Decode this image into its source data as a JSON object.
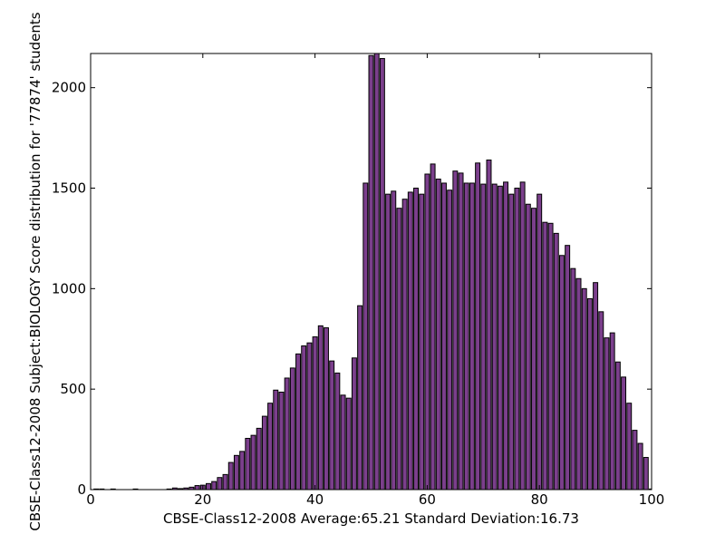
{
  "chart_data": {
    "type": "bar",
    "title": "",
    "xlabel": "CBSE-Class12-2008 Average:65.21 Standard Deviation:16.73",
    "ylabel": "CBSE-Class12-2008 Subject:BIOLOGY Score distribution for '77874' students",
    "xlim": [
      0,
      100
    ],
    "ylim": [
      0,
      2170
    ],
    "x_ticks": [
      0,
      20,
      40,
      60,
      80,
      100
    ],
    "y_ticks": [
      0,
      500,
      1000,
      1500,
      2000
    ],
    "grid": false,
    "bar_color": "#7b3f8c",
    "bar_edge_color": "#000000",
    "x": [
      1,
      2,
      4,
      8,
      14,
      15,
      16,
      17,
      18,
      19,
      20,
      21,
      22,
      23,
      24,
      25,
      26,
      27,
      28,
      29,
      30,
      31,
      32,
      33,
      34,
      35,
      36,
      37,
      38,
      39,
      40,
      41,
      42,
      43,
      44,
      45,
      46,
      47,
      48,
      49,
      50,
      51,
      52,
      53,
      54,
      55,
      56,
      57,
      58,
      59,
      60,
      61,
      62,
      63,
      64,
      65,
      66,
      67,
      68,
      69,
      70,
      71,
      72,
      73,
      74,
      75,
      76,
      77,
      78,
      79,
      80,
      81,
      82,
      83,
      84,
      85,
      86,
      87,
      88,
      89,
      90,
      91,
      92,
      93,
      94,
      95,
      96,
      97,
      98,
      99,
      100
    ],
    "values": [
      3,
      3,
      3,
      3,
      3,
      8,
      5,
      8,
      12,
      20,
      22,
      30,
      40,
      60,
      75,
      135,
      170,
      190,
      255,
      270,
      305,
      365,
      430,
      495,
      485,
      555,
      605,
      675,
      715,
      730,
      760,
      815,
      805,
      640,
      580,
      470,
      455,
      655,
      915,
      1525,
      2160,
      2170,
      2145,
      1470,
      1485,
      1400,
      1445,
      1480,
      1500,
      1470,
      1570,
      1620,
      1545,
      1525,
      1490,
      1585,
      1575,
      1525,
      1525,
      1625,
      1520,
      1640,
      1520,
      1510,
      1530,
      1470,
      1500,
      1530,
      1420,
      1400,
      1470,
      1330,
      1325,
      1275,
      1165,
      1215,
      1100,
      1050,
      1000,
      950,
      1030,
      885,
      755,
      780,
      635,
      560,
      430,
      295,
      230,
      160,
      3
    ]
  }
}
